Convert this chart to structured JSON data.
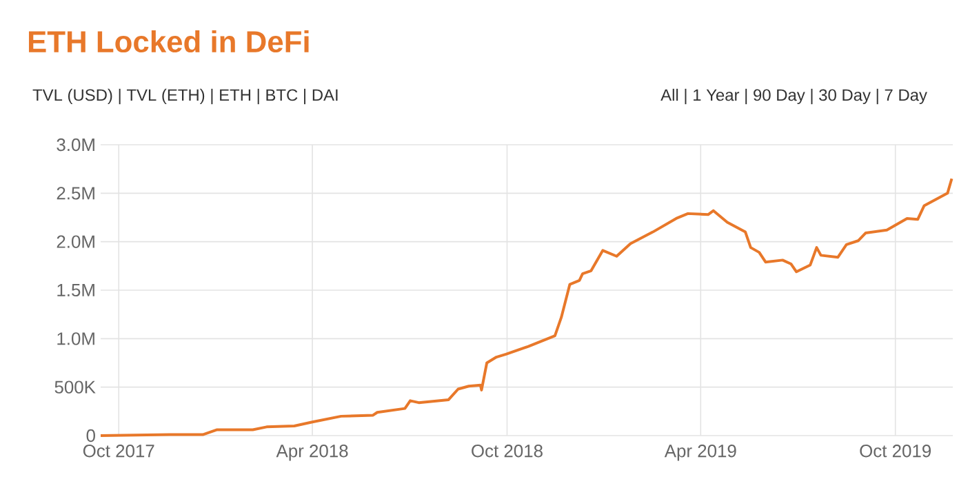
{
  "chart_data": {
    "type": "line",
    "title": "ETH Locked in DeFi",
    "annotations": [
      "TVL (USD) | TVL (ETH) | ETH | BTC | DAI",
      "All | 1 Year | 90 Day | 30 Day | 7 Day"
    ],
    "xlim": [
      "2017-09-14",
      "2019-11-24"
    ],
    "xticks": [
      {
        "value": "2017-10-01",
        "label": "Oct 2017"
      },
      {
        "value": "2018-04-01",
        "label": "Apr 2018"
      },
      {
        "value": "2018-10-01",
        "label": "Oct 2018"
      },
      {
        "value": "2019-04-01",
        "label": "Apr 2019"
      },
      {
        "value": "2019-10-01",
        "label": "Oct 2019"
      }
    ],
    "ylim": [
      0,
      3000000
    ],
    "yticks": [
      0,
      {
        "value": 500000,
        "label": "500K"
      },
      {
        "value": 1000000,
        "label": "1.0M"
      },
      {
        "value": 1500000,
        "label": "1.5M"
      },
      {
        "value": 2000000,
        "label": "2.0M"
      },
      {
        "value": 2500000,
        "label": "2.5M"
      },
      {
        "value": 3000000,
        "label": "3.0M"
      }
    ],
    "grid": true,
    "marker": "none",
    "line_style": "solid",
    "series": [
      {
        "color": "#e8782a",
        "x": [
          "2017-09-14",
          "2017-11-18",
          "2017-12-19",
          "2018-01-01",
          "2018-02-04",
          "2018-02-17",
          "2018-03-15",
          "2018-04-01",
          "2018-04-28",
          "2018-05-28",
          "2018-06-01",
          "2018-06-27",
          "2018-07-02",
          "2018-07-10",
          "2018-08-07",
          "2018-08-16",
          "2018-08-26",
          "2018-09-06",
          "2018-09-07",
          "2018-09-12",
          "2018-09-21",
          "2018-09-30",
          "2018-10-21",
          "2018-11-15",
          "2018-11-21",
          "2018-11-29",
          "2018-12-08",
          "2018-12-11",
          "2018-12-19",
          "2018-12-30",
          "2019-01-12",
          "2019-01-25",
          "2019-02-15",
          "2019-03-09",
          "2019-03-20",
          "2019-04-08",
          "2019-04-13",
          "2019-04-26",
          "2019-05-13",
          "2019-05-18",
          "2019-05-26",
          "2019-06-01",
          "2019-06-17",
          "2019-06-25",
          "2019-06-30",
          "2019-07-13",
          "2019-07-19",
          "2019-07-23",
          "2019-08-08",
          "2019-08-16",
          "2019-08-27",
          "2019-09-03",
          "2019-09-23",
          "2019-10-12",
          "2019-10-22",
          "2019-10-28",
          "2019-11-19",
          "2019-11-23"
        ],
        "values": [
          0,
          10000,
          10000,
          60000,
          60000,
          90000,
          100000,
          140000,
          200000,
          210000,
          240000,
          280000,
          360000,
          340000,
          370000,
          480000,
          510000,
          520000,
          470000,
          750000,
          810000,
          840000,
          920000,
          1030000,
          1220000,
          1560000,
          1600000,
          1670000,
          1700000,
          1910000,
          1850000,
          1980000,
          2100000,
          2240000,
          2290000,
          2280000,
          2320000,
          2200000,
          2100000,
          1940000,
          1890000,
          1790000,
          1810000,
          1770000,
          1690000,
          1760000,
          1940000,
          1860000,
          1840000,
          1970000,
          2010000,
          2090000,
          2120000,
          2240000,
          2230000,
          2370000,
          2500000,
          2650000
        ]
      }
    ]
  }
}
